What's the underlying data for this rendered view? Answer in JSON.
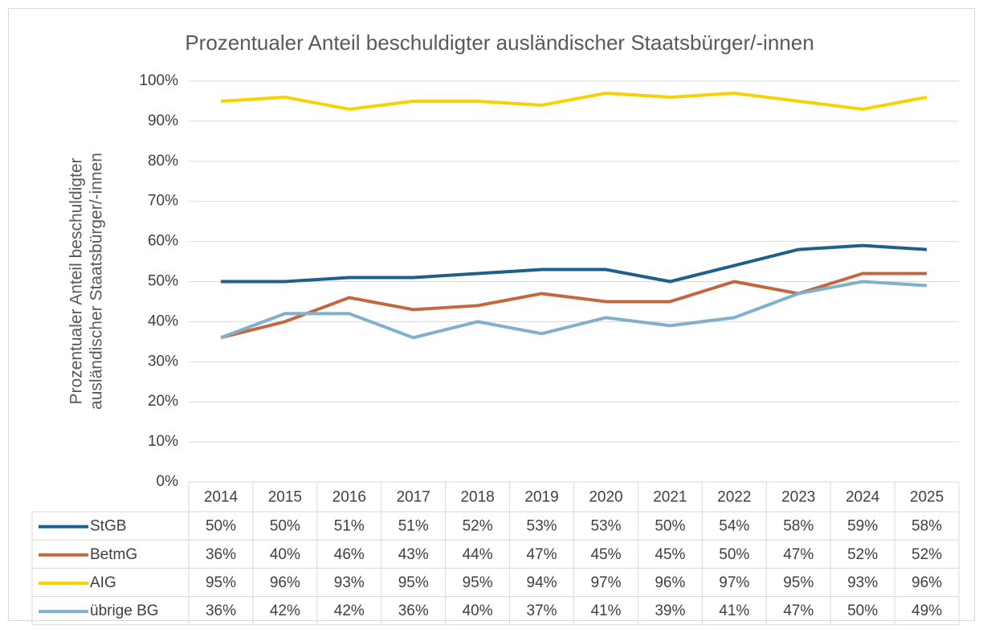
{
  "chart_data": {
    "type": "line",
    "title": "Prozentualer Anteil beschuldigter ausländischer Staatsbürger/-innen",
    "ylabel": [
      "Prozentualer Anteil beschuldigter",
      "ausländischer Staatsbürger/-innen"
    ],
    "categories": [
      "2014",
      "2015",
      "2016",
      "2017",
      "2018",
      "2019",
      "2020",
      "2021",
      "2022",
      "2023",
      "2024",
      "2025"
    ],
    "series": [
      {
        "name": "StGB",
        "color": "#1f5f8b",
        "values": [
          50,
          50,
          51,
          51,
          52,
          53,
          53,
          50,
          54,
          58,
          59,
          58
        ],
        "value_labels": [
          "50%",
          "50%",
          "51%",
          "51%",
          "52%",
          "53%",
          "53%",
          "50%",
          "54%",
          "58%",
          "59%",
          "58%"
        ]
      },
      {
        "name": "BetmG",
        "color": "#c3673f",
        "values": [
          36,
          40,
          46,
          43,
          44,
          47,
          45,
          45,
          50,
          47,
          52,
          52
        ],
        "value_labels": [
          "36%",
          "40%",
          "46%",
          "43%",
          "44%",
          "47%",
          "45%",
          "45%",
          "50%",
          "47%",
          "52%",
          "52%"
        ]
      },
      {
        "name": "AIG",
        "color": "#f7d200",
        "values": [
          95,
          96,
          93,
          95,
          95,
          94,
          97,
          96,
          97,
          95,
          93,
          96
        ],
        "value_labels": [
          "95%",
          "96%",
          "93%",
          "95%",
          "95%",
          "94%",
          "97%",
          "96%",
          "97%",
          "95%",
          "93%",
          "96%"
        ]
      },
      {
        "name": "übrige BG",
        "color": "#7fb1cc",
        "values": [
          36,
          42,
          42,
          36,
          40,
          37,
          41,
          39,
          41,
          47,
          50,
          49
        ],
        "value_labels": [
          "36%",
          "42%",
          "42%",
          "36%",
          "40%",
          "37%",
          "41%",
          "39%",
          "41%",
          "47%",
          "50%",
          "49%"
        ]
      }
    ],
    "ylim": [
      0,
      100
    ],
    "yticks": [
      {
        "value": 0,
        "label": "0%"
      },
      {
        "value": 10,
        "label": "10%"
      },
      {
        "value": 20,
        "label": "20%"
      },
      {
        "value": 30,
        "label": "30%"
      },
      {
        "value": 40,
        "label": "40%"
      },
      {
        "value": 50,
        "label": "50%"
      },
      {
        "value": 60,
        "label": "60%"
      },
      {
        "value": 70,
        "label": "70%"
      },
      {
        "value": 80,
        "label": "80%"
      },
      {
        "value": 90,
        "label": "90%"
      },
      {
        "value": 100,
        "label": "100%"
      }
    ],
    "grid": true
  }
}
